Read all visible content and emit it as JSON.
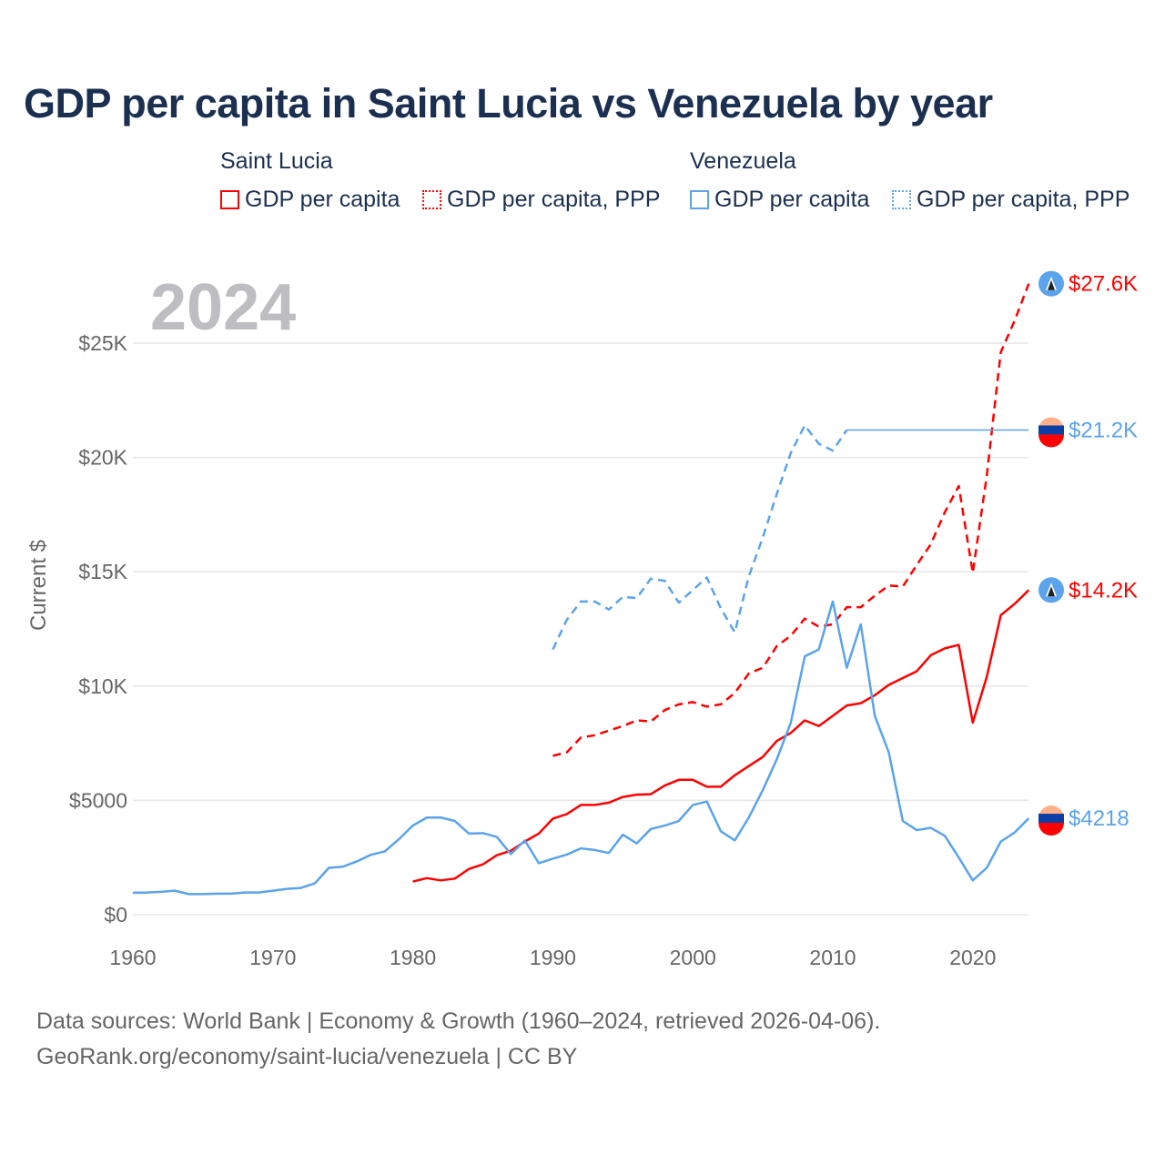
{
  "title": "GDP per capita in Saint Lucia vs Venezuela by year",
  "legend": {
    "groups": [
      {
        "name": "Saint Lucia",
        "items": [
          "GDP per capita",
          "GDP per capita, PPP"
        ]
      },
      {
        "name": "Venezuela",
        "items": [
          "GDP per capita",
          "GDP per capita, PPP"
        ]
      }
    ]
  },
  "colors": {
    "saint_lucia": "#ff0000",
    "venezuela": "#5ba3ea"
  },
  "year_label": "2024",
  "footer": [
    "Data sources: World Bank | Economy & Growth (1960–2024, retrieved 2026-04-06).",
    "GeoRank.org/economy/saint-lucia/venezuela | CC BY"
  ],
  "chart_data": {
    "type": "line",
    "title": "GDP per capita in Saint Lucia vs Venezuela by year",
    "xlabel": "",
    "ylabel": "Current $",
    "xlim": [
      1960,
      2024
    ],
    "ylim": [
      0,
      27600
    ],
    "xticks": [
      1960,
      1970,
      1980,
      1990,
      2000,
      2010,
      2020
    ],
    "xtick_labels": [
      "1960",
      "1970",
      "1980",
      "1990",
      "2000",
      "2010",
      "2020"
    ],
    "yticks": [
      0,
      5000,
      10000,
      15000,
      20000,
      25000
    ],
    "ytick_labels": [
      "$0",
      "$5000",
      "$10K",
      "$15K",
      "$20K",
      "$25K"
    ],
    "grid": true,
    "series": [
      {
        "name": "Saint Lucia GDP per capita",
        "color": "#ff0000",
        "dash": false,
        "end_label": "$14.2K",
        "start": 1980,
        "values": [
          1450,
          1600,
          1500,
          1580,
          2000,
          2200,
          2600,
          2800,
          3200,
          3550,
          4200,
          4400,
          4800,
          4800,
          4900,
          5150,
          5250,
          5270,
          5650,
          5900,
          5900,
          5600,
          5600,
          6100,
          6500,
          6900,
          7600,
          7950,
          8500,
          8250,
          8700,
          9150,
          9250,
          9600,
          10050,
          10350,
          10650,
          11350,
          11650,
          11800,
          8400,
          10400,
          13100,
          13600,
          14200
        ]
      },
      {
        "name": "Saint Lucia GDP per capita, PPP",
        "color": "#ff0000",
        "dash": true,
        "end_label": "$27.6K",
        "start": 1990,
        "values": [
          6950,
          7100,
          7750,
          7850,
          8050,
          8250,
          8500,
          8450,
          8950,
          9200,
          9300,
          9100,
          9200,
          9700,
          10550,
          10800,
          11750,
          12200,
          12950,
          12600,
          12700,
          13450,
          13450,
          13950,
          14400,
          14350,
          15300,
          16200,
          17600,
          18750,
          14950,
          19200,
          24600,
          26000,
          27600
        ]
      },
      {
        "name": "Venezuela GDP per capita",
        "color": "#5ba3ea",
        "dash": false,
        "end_label": "$4218",
        "start": 1960,
        "values": [
          960,
          970,
          1000,
          1050,
          900,
          900,
          920,
          920,
          970,
          970,
          1050,
          1130,
          1170,
          1370,
          2050,
          2100,
          2330,
          2620,
          2770,
          3300,
          3900,
          4250,
          4250,
          4100,
          3550,
          3570,
          3400,
          2650,
          3250,
          2250,
          2450,
          2630,
          2900,
          2830,
          2700,
          3500,
          3120,
          3750,
          3900,
          4100,
          4800,
          4950,
          3650,
          3250,
          4250,
          5450,
          6800,
          8400,
          11300,
          11600,
          13700,
          10800,
          12700,
          8700,
          7100,
          4100,
          3700,
          3800,
          3450,
          2500,
          1500,
          2050,
          3200,
          3600,
          4218
        ]
      },
      {
        "name": "Venezuela GDP per capita, PPP",
        "color": "#5ba3ea",
        "dash": true,
        "end_label": "$21.2K",
        "start": 1990,
        "carried_forward_to": 2024,
        "values": [
          11600,
          12900,
          13700,
          13700,
          13350,
          13900,
          13850,
          14700,
          14600,
          13650,
          14200,
          14750,
          13400,
          12350,
          14800,
          16500,
          18400,
          20200,
          21400,
          20600,
          20300,
          21200
        ]
      }
    ]
  }
}
